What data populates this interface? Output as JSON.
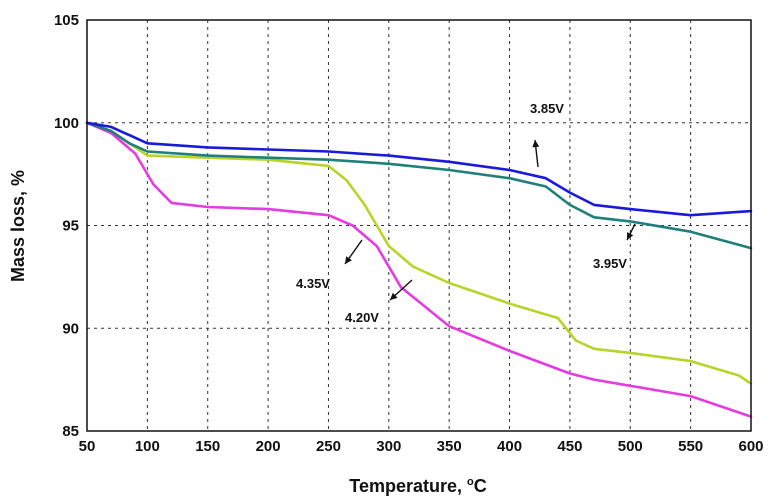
{
  "chart_data": {
    "type": "line",
    "xlabel": "Temperature, ",
    "xlabel_sup": "o",
    "xlabel_unit": "C",
    "ylabel": "Mass loss, %",
    "xlim": [
      50,
      600
    ],
    "ylim": [
      85,
      105
    ],
    "x_ticks": [
      "50",
      "100",
      "150",
      "200",
      "250",
      "300",
      "350",
      "400",
      "450",
      "500",
      "550",
      "600"
    ],
    "y_ticks": [
      "85",
      "90",
      "95",
      "100",
      "105"
    ],
    "grid": true,
    "series": [
      {
        "name": "3.85V",
        "color": "#1a1adc",
        "x": [
          50,
          70,
          85,
          100,
          150,
          200,
          250,
          300,
          350,
          400,
          430,
          450,
          470,
          500,
          550,
          600
        ],
        "y": [
          100.0,
          99.8,
          99.4,
          99.0,
          98.8,
          98.7,
          98.6,
          98.4,
          98.1,
          97.7,
          97.3,
          96.6,
          96.0,
          95.8,
          95.5,
          95.7
        ]
      },
      {
        "name": "3.95V",
        "color": "#1f7f7a",
        "x": [
          50,
          70,
          85,
          100,
          150,
          200,
          250,
          300,
          350,
          400,
          430,
          450,
          470,
          500,
          550,
          600
        ],
        "y": [
          100.0,
          99.6,
          99.0,
          98.6,
          98.4,
          98.3,
          98.2,
          98.0,
          97.7,
          97.3,
          96.9,
          96.0,
          95.4,
          95.2,
          94.7,
          93.9
        ]
      },
      {
        "name": "4.20V",
        "color": "#e43ce0",
        "x": [
          50,
          70,
          90,
          105,
          120,
          150,
          200,
          250,
          270,
          290,
          310,
          350,
          400,
          450,
          470,
          500,
          550,
          600
        ],
        "y": [
          100.0,
          99.5,
          98.5,
          97.0,
          96.1,
          95.9,
          95.8,
          95.5,
          95.0,
          94.0,
          92.0,
          90.1,
          88.9,
          87.8,
          87.5,
          87.2,
          86.7,
          85.7
        ]
      },
      {
        "name": "4.35V",
        "color": "#b9d329",
        "x": [
          50,
          70,
          85,
          100,
          150,
          200,
          250,
          265,
          280,
          300,
          320,
          350,
          400,
          440,
          455,
          470,
          500,
          550,
          590,
          600
        ],
        "y": [
          100.0,
          99.6,
          99.0,
          98.4,
          98.3,
          98.2,
          97.9,
          97.2,
          96.0,
          94.0,
          93.0,
          92.2,
          91.2,
          90.5,
          89.4,
          89.0,
          88.8,
          88.4,
          87.7,
          87.3
        ]
      }
    ],
    "annotations": [
      {
        "text": "3.85V",
        "series": "3.85V"
      },
      {
        "text": "3.95V",
        "series": "3.95V"
      },
      {
        "text": "4.35V",
        "series": "4.35V"
      },
      {
        "text": "4.20V",
        "series": "4.20V"
      }
    ]
  }
}
